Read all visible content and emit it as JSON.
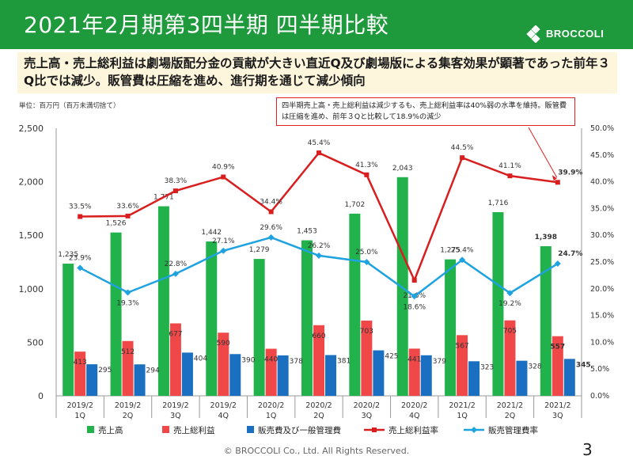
{
  "header": {
    "title": "2021年2月期第3四半期 四半期比較",
    "logo_text": "BROCCOLI"
  },
  "banner": {
    "text": "売上高・売上総利益は劇場版配分金の貢献が大きい直近Q及び劇場版による集客効果が顕著であった前年３Q比では減少。販管費は圧縮を進め、進行期を通じて減少傾向"
  },
  "unit_label": "単位：百万円（百万未満切捨て）",
  "note": "四半期売上高・売上総利益は減少するも、売上総利益率は40%弱の水準を維持。販管費は圧縮を進め、前年３Qと比較して18.9%の減少",
  "footer": "© BROCCOLI Co., Ltd. All Rights Reserved.",
  "page_number": "3",
  "colors": {
    "header": "#1e9a3c",
    "sales": "#22b24c",
    "gross": "#f04848",
    "sga": "#1a6fc0",
    "gross_rate": "#d81e1e",
    "sga_rate": "#1fa3e0"
  },
  "chart_data": {
    "type": "bar",
    "categories": [
      [
        "2019/2",
        "1Q"
      ],
      [
        "2019/2",
        "2Q"
      ],
      [
        "2019/2",
        "3Q"
      ],
      [
        "2019/2",
        "4Q"
      ],
      [
        "2020/2",
        "1Q"
      ],
      [
        "2020/2",
        "2Q"
      ],
      [
        "2020/2",
        "3Q"
      ],
      [
        "2020/2",
        "4Q"
      ],
      [
        "2021/2",
        "1Q"
      ],
      [
        "2021/2",
        "2Q"
      ],
      [
        "2021/2",
        "3Q"
      ]
    ],
    "series": [
      {
        "name": "売上高",
        "kind": "bar",
        "axis": "left",
        "values": [
          1235,
          1526,
          1771,
          1442,
          1279,
          1453,
          1702,
          2043,
          1275,
          1716,
          1398
        ],
        "labels": [
          "1,235",
          "1,526",
          "1,771",
          "1,442",
          "1,279",
          "1,453",
          "1,702",
          "2,043",
          "1,275",
          "1,716",
          "1,398"
        ]
      },
      {
        "name": "売上総利益",
        "kind": "bar",
        "axis": "left",
        "values": [
          413,
          512,
          677,
          590,
          440,
          660,
          703,
          441,
          567,
          705,
          557
        ],
        "labels": [
          "413",
          "512",
          "677",
          "590",
          "440",
          "660",
          "703",
          "441",
          "567",
          "705",
          "557"
        ]
      },
      {
        "name": "販売費及び一般管理費",
        "kind": "bar",
        "axis": "left",
        "values": [
          295,
          294,
          404,
          390,
          378,
          381,
          425,
          379,
          323,
          328,
          345
        ],
        "labels": [
          "295",
          "294",
          "404",
          "390",
          "378",
          "381",
          "425",
          "379",
          "323",
          "328",
          "345"
        ]
      },
      {
        "name": "売上総利益率",
        "kind": "line",
        "axis": "right",
        "values": [
          33.5,
          33.6,
          38.3,
          40.9,
          34.4,
          45.4,
          41.3,
          21.6,
          44.5,
          41.1,
          39.9
        ],
        "labels": [
          "33.5%",
          "33.6%",
          "38.3%",
          "40.9%",
          "34.4%",
          "45.4%",
          "41.3%",
          "21.6%",
          "44.5%",
          "41.1%",
          "39.9%"
        ]
      },
      {
        "name": "販売管理費率",
        "kind": "line",
        "axis": "right",
        "values": [
          23.9,
          19.3,
          22.8,
          27.1,
          29.6,
          26.2,
          25.0,
          18.6,
          25.4,
          19.2,
          24.7
        ],
        "labels": [
          "23.9%",
          "19.3%",
          "22.8%",
          "27.1%",
          "29.6%",
          "26.2%",
          "25.0%",
          "18.6%",
          "25.4%",
          "19.2%",
          "24.7%"
        ]
      }
    ],
    "y_left": {
      "lim": [
        0,
        2500
      ],
      "ticks": [
        "0",
        "500",
        "1,000",
        "1,500",
        "2,000",
        "2,500"
      ]
    },
    "y_right": {
      "lim": [
        0,
        50
      ],
      "ticks": [
        "0.0%",
        "5.0%",
        "10.0%",
        "15.0%",
        "20.0%",
        "25.0%",
        "30.0%",
        "35.0%",
        "40.0%",
        "45.0%",
        "50.0%"
      ]
    },
    "grid": false,
    "legend_position": "bottom"
  }
}
